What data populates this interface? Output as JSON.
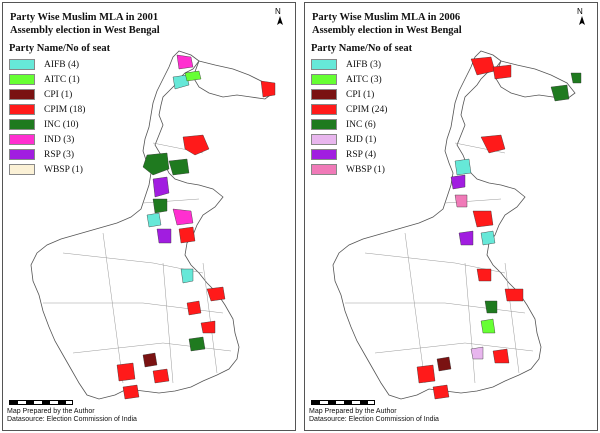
{
  "maps": [
    {
      "title": "Party Wise Muslim MLA in 2001\nAssembly election in West Bengal",
      "legend_title": "Party Name/No of seat",
      "legend": [
        {
          "label": "AIFB (4)",
          "color": "#66e8d8"
        },
        {
          "label": "AITC (1)",
          "color": "#66ff33"
        },
        {
          "label": "CPI (1)",
          "color": "#7a1212"
        },
        {
          "label": "CPIM (18)",
          "color": "#ff1a1a"
        },
        {
          "label": "INC (10)",
          "color": "#1f7a1f"
        },
        {
          "label": "IND (3)",
          "color": "#ff2fd0"
        },
        {
          "label": "RSP (3)",
          "color": "#a11de0"
        },
        {
          "label": "WBSP (1)",
          "color": "#fbf1d6"
        }
      ],
      "north": "N",
      "credit_line1": "Map Prepared by the Author",
      "credit_line2": "Datasource: Election Commission of India"
    },
    {
      "title": "Party Wise Muslim MLA in 2006\nAssembly election in West Bengal",
      "legend_title": "Party Name/No of seat",
      "legend": [
        {
          "label": "AIFB (3)",
          "color": "#66e8d8"
        },
        {
          "label": "AITC (3)",
          "color": "#66ff33"
        },
        {
          "label": "CPI (1)",
          "color": "#7a1212"
        },
        {
          "label": "CPIM (24)",
          "color": "#ff1a1a"
        },
        {
          "label": "INC (6)",
          "color": "#1f7a1f"
        },
        {
          "label": "RJD (1)",
          "color": "#e8b6ee"
        },
        {
          "label": "RSP (4)",
          "color": "#a11de0"
        },
        {
          "label": "WBSP (1)",
          "color": "#f07ab8"
        }
      ],
      "north": "N",
      "credit_line1": "Map Prepared by the Author",
      "credit_line2": "Datasource: Election Commission of India"
    }
  ]
}
